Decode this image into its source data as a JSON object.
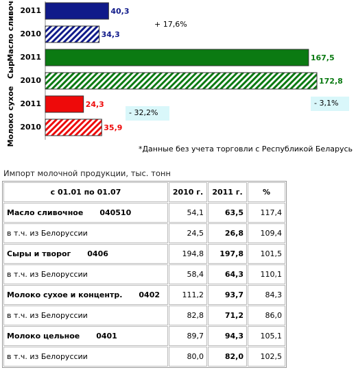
{
  "chart_data": {
    "type": "bar",
    "orientation": "horizontal",
    "categories": [
      "Масло сливочное",
      "Сыр",
      "Молоко сухое"
    ],
    "colors": [
      "#101a8a",
      "#0b7a12",
      "#ee0a0a"
    ],
    "series": [
      {
        "name": "2011",
        "pattern": "solid",
        "values": [
          40.3,
          167.5,
          24.3
        ],
        "value_labels": [
          "40,3",
          "167,5",
          "24,3"
        ]
      },
      {
        "name": "2010",
        "pattern": "hatch",
        "values": [
          34.3,
          172.8,
          35.9
        ],
        "value_labels": [
          "34,3",
          "172,8",
          "35,9"
        ]
      }
    ],
    "annotations": [
      "+ 17,6%",
      "- 3,1%",
      "- 32,2%"
    ],
    "note": "*Данные без учета торговли с Республикой Беларусь"
  },
  "table": {
    "title": "Импорт молочной продукции, тыс. тонн",
    "header": [
      "с 01.01 по 01.07",
      "2010 г.",
      "2011 г.",
      "%"
    ],
    "rows": [
      {
        "label": "Масло сливочное",
        "code": "040510",
        "cells": [
          "54,1",
          "63,5",
          "117,4"
        ]
      },
      {
        "label": "в т.ч. из Белоруссии",
        "cells": [
          "24,5",
          "26,8",
          "109,4"
        ]
      },
      {
        "label": "Сыры и творог",
        "code": "0406",
        "cells": [
          "194,8",
          "197,8",
          "101,5"
        ]
      },
      {
        "label": "в т.ч. из Белоруссии",
        "cells": [
          "58,4",
          "64,3",
          "110,1"
        ]
      },
      {
        "label": "Молоко сухое и концентр.",
        "code": "0402",
        "cells": [
          "111,2",
          "93,7",
          "84,3"
        ]
      },
      {
        "label": "в т.ч. из Белоруссии",
        "cells": [
          "82,8",
          "71,2",
          "86,0"
        ]
      },
      {
        "label": "Молоко цельное",
        "code": "0401",
        "cells": [
          "89,7",
          "94,3",
          "105,1"
        ]
      },
      {
        "label": "в т.ч. из Белоруссии",
        "cells": [
          "80,0",
          "82,0",
          "102,5"
        ]
      }
    ]
  }
}
